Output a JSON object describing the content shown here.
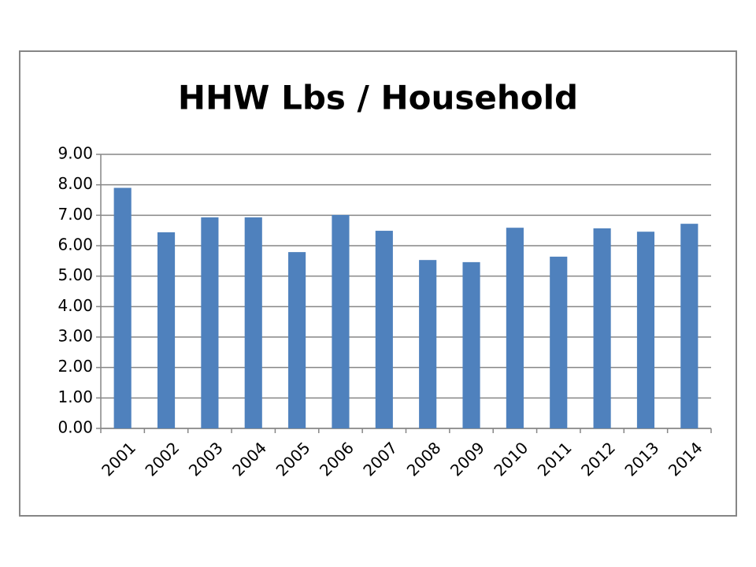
{
  "chart_data": {
    "type": "bar",
    "title": "HHW Lbs / Household",
    "categories": [
      "2001",
      "2002",
      "2003",
      "2004",
      "2005",
      "2006",
      "2007",
      "2008",
      "2009",
      "2010",
      "2011",
      "2012",
      "2013",
      "2014"
    ],
    "values": [
      7.9,
      6.44,
      6.93,
      6.93,
      5.79,
      7.01,
      6.49,
      5.53,
      5.46,
      6.59,
      5.64,
      6.57,
      6.46,
      6.72
    ],
    "color": "#4f81bd",
    "ylim": [
      0,
      9
    ],
    "yticks": [
      {
        "value": 0,
        "label": "0.00"
      },
      {
        "value": 1,
        "label": "1.00"
      },
      {
        "value": 2,
        "label": "2.00"
      },
      {
        "value": 3,
        "label": "3.00"
      },
      {
        "value": 4,
        "label": "4.00"
      },
      {
        "value": 5,
        "label": "5.00"
      },
      {
        "value": 6,
        "label": "6.00"
      },
      {
        "value": 7,
        "label": "7.00"
      },
      {
        "value": 8,
        "label": "8.00"
      },
      {
        "value": 9,
        "label": "9.00"
      }
    ],
    "grid": true
  }
}
